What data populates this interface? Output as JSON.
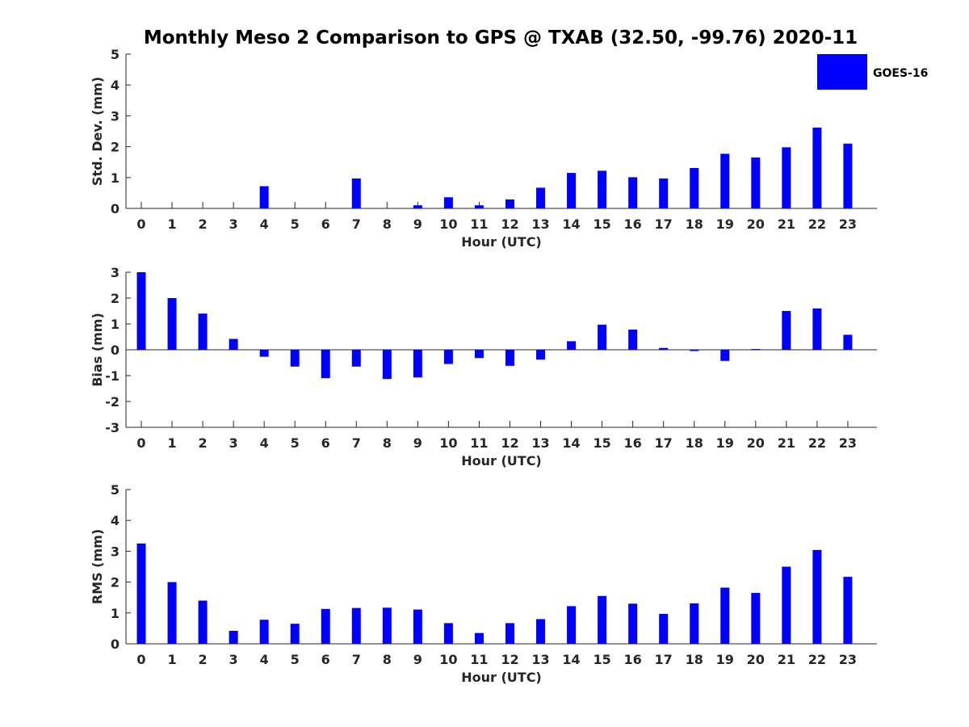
{
  "title": "Monthly Meso 2 Comparison to GPS @ TXAB (32.50, -99.76) 2020-11",
  "legend": {
    "label": "GOES-16",
    "color": "#0000ff",
    "placement": "top-right"
  },
  "chart_data": [
    {
      "type": "bar",
      "id": "std",
      "ylabel": "Std. Dev. (mm)",
      "xlabel": "Hour (UTC)",
      "ylim": [
        0,
        5
      ],
      "yticks": [
        0,
        1,
        2,
        3,
        4,
        5
      ],
      "categories": [
        "0",
        "1",
        "2",
        "3",
        "4",
        "5",
        "6",
        "7",
        "8",
        "9",
        "10",
        "11",
        "12",
        "13",
        "14",
        "15",
        "16",
        "17",
        "18",
        "19",
        "20",
        "21",
        "22",
        "23"
      ],
      "series": [
        {
          "name": "GOES-16",
          "values": [
            0,
            0,
            0,
            0,
            0.72,
            0,
            0,
            0.97,
            0,
            0.1,
            0.36,
            0.1,
            0.29,
            0.67,
            1.15,
            1.22,
            1.01,
            0.97,
            1.31,
            1.77,
            1.65,
            1.98,
            2.62,
            2.1
          ]
        }
      ]
    },
    {
      "type": "bar",
      "id": "bias",
      "ylabel": "Bias (mm)",
      "xlabel": "Hour (UTC)",
      "ylim": [
        -3,
        3
      ],
      "yticks": [
        -3,
        -2,
        -1,
        0,
        1,
        2,
        3
      ],
      "zero_line": true,
      "categories": [
        "0",
        "1",
        "2",
        "3",
        "4",
        "5",
        "6",
        "7",
        "8",
        "9",
        "10",
        "11",
        "12",
        "13",
        "14",
        "15",
        "16",
        "17",
        "18",
        "19",
        "20",
        "21",
        "22",
        "23"
      ],
      "series": [
        {
          "name": "GOES-16",
          "values": [
            3.0,
            2.0,
            1.4,
            0.42,
            -0.27,
            -0.65,
            -1.1,
            -0.65,
            -1.13,
            -1.07,
            -0.55,
            -0.32,
            -0.62,
            -0.38,
            0.33,
            0.97,
            0.78,
            0.07,
            -0.05,
            -0.43,
            0.03,
            1.5,
            1.6,
            0.58
          ]
        }
      ]
    },
    {
      "type": "bar",
      "id": "rms",
      "ylabel": "RMS (mm)",
      "xlabel": "Hour (UTC)",
      "ylim": [
        0,
        5
      ],
      "yticks": [
        0,
        1,
        2,
        3,
        4,
        5
      ],
      "categories": [
        "0",
        "1",
        "2",
        "3",
        "4",
        "5",
        "6",
        "7",
        "8",
        "9",
        "10",
        "11",
        "12",
        "13",
        "14",
        "15",
        "16",
        "17",
        "18",
        "19",
        "20",
        "21",
        "22",
        "23"
      ],
      "series": [
        {
          "name": "GOES-16",
          "values": [
            3.25,
            2.0,
            1.4,
            0.42,
            0.78,
            0.65,
            1.13,
            1.16,
            1.17,
            1.11,
            0.67,
            0.35,
            0.67,
            0.8,
            1.22,
            1.55,
            1.3,
            0.97,
            1.31,
            1.82,
            1.65,
            2.5,
            3.04,
            2.17
          ]
        }
      ]
    }
  ]
}
